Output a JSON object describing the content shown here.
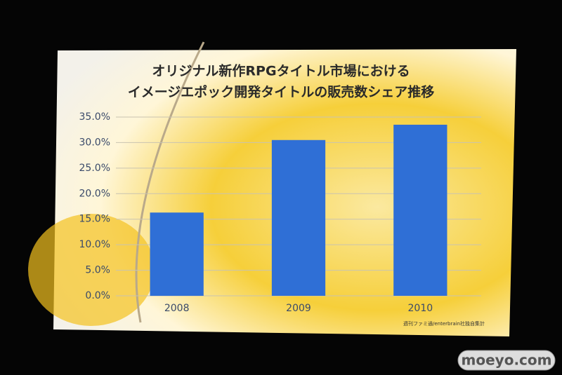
{
  "chart_data": {
    "type": "bar",
    "title": [
      "オリジナル新作RPGタイトル市場における",
      "イメージエポック開発タイトルの販売数シェア推移"
    ],
    "categories": [
      "2008",
      "2009",
      "2010"
    ],
    "values": [
      16.3,
      30.5,
      33.5
    ],
    "color": "#2f6fd6",
    "ylim": [
      0,
      35
    ],
    "yticks": [
      {
        "value": 0,
        "label": "0.0%"
      },
      {
        "value": 5,
        "label": "5.0%"
      },
      {
        "value": 10,
        "label": "10.0%"
      },
      {
        "value": 15,
        "label": "15.0%"
      },
      {
        "value": 20,
        "label": "20.0%"
      },
      {
        "value": 25,
        "label": "25.0%"
      },
      {
        "value": 30,
        "label": "30.0%"
      },
      {
        "value": 35,
        "label": "35.0%"
      }
    ],
    "grid": true,
    "source": "週刊ファミ通/enterbrain社独自集計"
  },
  "watermark": "moeyo.com"
}
